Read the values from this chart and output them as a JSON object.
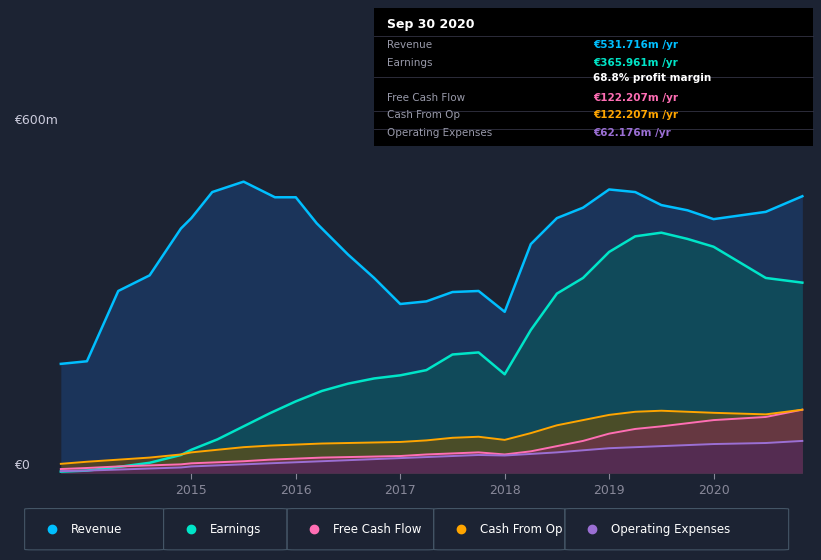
{
  "bg_color": "#1c2333",
  "annotation": {
    "title": "Sep 30 2020",
    "rows": [
      {
        "label": "Revenue",
        "value": "€531.716m /yr",
        "value_color": "#00bfff"
      },
      {
        "label": "Earnings",
        "value": "€365.961m /yr",
        "value_color": "#00e5c8"
      },
      {
        "label": "",
        "value": "68.8% profit margin",
        "value_color": "#ffffff"
      },
      {
        "label": "Free Cash Flow",
        "value": "€122.207m /yr",
        "value_color": "#ff6eb4"
      },
      {
        "label": "Cash From Op",
        "value": "€122.207m /yr",
        "value_color": "#ffa500"
      },
      {
        "label": "Operating Expenses",
        "value": "€62.176m /yr",
        "value_color": "#9b6fd4"
      }
    ]
  },
  "legend": [
    "Revenue",
    "Earnings",
    "Free Cash Flow",
    "Cash From Op",
    "Operating Expenses"
  ],
  "legend_colors": [
    "#00bfff",
    "#00e5c8",
    "#ff6eb4",
    "#ffa500",
    "#9b6fd4"
  ],
  "x_ticks": [
    2015,
    2016,
    2017,
    2018,
    2019,
    2020
  ],
  "xlim": [
    2013.6,
    2020.95
  ],
  "ylim": [
    0,
    640
  ],
  "ylabel_text": "€600m",
  "y0_text": "€0",
  "revenue": {
    "x": [
      2013.75,
      2014.0,
      2014.3,
      2014.6,
      2014.9,
      2015.0,
      2015.2,
      2015.5,
      2015.8,
      2016.0,
      2016.2,
      2016.5,
      2016.75,
      2017.0,
      2017.25,
      2017.5,
      2017.75,
      2018.0,
      2018.25,
      2018.5,
      2018.75,
      2019.0,
      2019.25,
      2019.5,
      2019.75,
      2020.0,
      2020.5,
      2020.85
    ],
    "y": [
      210,
      215,
      350,
      380,
      470,
      490,
      540,
      560,
      530,
      530,
      480,
      420,
      375,
      325,
      330,
      348,
      350,
      310,
      440,
      490,
      510,
      545,
      540,
      515,
      505,
      488,
      502,
      532
    ]
  },
  "earnings": {
    "x": [
      2013.75,
      2014.0,
      2014.3,
      2014.6,
      2014.9,
      2015.0,
      2015.25,
      2015.5,
      2015.75,
      2016.0,
      2016.25,
      2016.5,
      2016.75,
      2017.0,
      2017.25,
      2017.5,
      2017.75,
      2018.0,
      2018.25,
      2018.5,
      2018.75,
      2019.0,
      2019.25,
      2019.5,
      2019.75,
      2020.0,
      2020.5,
      2020.85
    ],
    "y": [
      3,
      5,
      12,
      20,
      35,
      45,
      65,
      90,
      115,
      138,
      158,
      172,
      182,
      188,
      198,
      228,
      232,
      190,
      275,
      345,
      375,
      425,
      455,
      462,
      450,
      435,
      375,
      366
    ]
  },
  "free_cash_flow": {
    "x": [
      2013.75,
      2014.0,
      2014.3,
      2014.6,
      2014.9,
      2015.0,
      2015.25,
      2015.5,
      2015.75,
      2016.0,
      2016.25,
      2016.5,
      2016.75,
      2017.0,
      2017.25,
      2017.5,
      2017.75,
      2018.0,
      2018.25,
      2018.5,
      2018.75,
      2019.0,
      2019.25,
      2019.5,
      2019.75,
      2020.0,
      2020.5,
      2020.85
    ],
    "y": [
      8,
      10,
      13,
      15,
      17,
      19,
      21,
      23,
      26,
      28,
      30,
      31,
      32,
      33,
      36,
      38,
      40,
      36,
      42,
      52,
      62,
      76,
      85,
      90,
      96,
      102,
      108,
      122
    ]
  },
  "cash_from_op": {
    "x": [
      2013.75,
      2014.0,
      2014.3,
      2014.6,
      2014.9,
      2015.0,
      2015.25,
      2015.5,
      2015.75,
      2016.0,
      2016.25,
      2016.5,
      2016.75,
      2017.0,
      2017.25,
      2017.5,
      2017.75,
      2018.0,
      2018.25,
      2018.5,
      2018.75,
      2019.0,
      2019.25,
      2019.5,
      2019.75,
      2020.0,
      2020.5,
      2020.85
    ],
    "y": [
      18,
      22,
      26,
      30,
      36,
      40,
      45,
      50,
      53,
      55,
      57,
      58,
      59,
      60,
      63,
      68,
      70,
      64,
      77,
      92,
      102,
      112,
      118,
      120,
      118,
      116,
      113,
      122
    ]
  },
  "op_expenses": {
    "x": [
      2013.75,
      2014.0,
      2014.3,
      2014.6,
      2014.9,
      2015.0,
      2015.25,
      2015.5,
      2015.75,
      2016.0,
      2016.25,
      2016.5,
      2016.75,
      2017.0,
      2017.25,
      2017.5,
      2017.75,
      2018.0,
      2018.25,
      2018.5,
      2018.75,
      2019.0,
      2019.25,
      2019.5,
      2019.75,
      2020.0,
      2020.5,
      2020.85
    ],
    "y": [
      4,
      5,
      7,
      9,
      11,
      13,
      15,
      17,
      19,
      21,
      23,
      25,
      27,
      29,
      31,
      33,
      35,
      34,
      37,
      40,
      44,
      48,
      50,
      52,
      54,
      56,
      58,
      62
    ]
  },
  "revenue_fill_color": "#1a4a8a",
  "earnings_fill_color": "#0a5a5a",
  "fcf_fill_color": "#8a2060",
  "cop_fill_color": "#7a5000",
  "opex_fill_color": "#3a1a6a"
}
